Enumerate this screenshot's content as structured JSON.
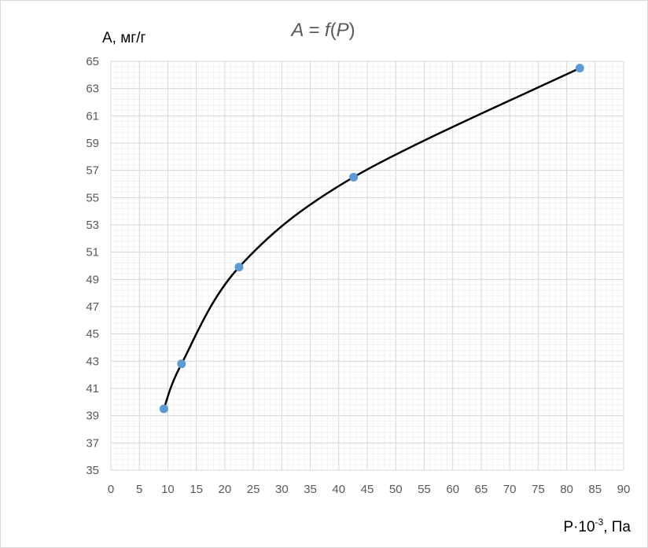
{
  "chart_data": {
    "type": "scatter",
    "title": {
      "left": "A = ",
      "func": "f",
      "open": "(",
      "var": "P",
      "close": ")"
    },
    "ylabel": "A, мг/г",
    "xlabel": {
      "base": "P·10",
      "exponent": "-3",
      "suffix": ", Па"
    },
    "xlim": [
      0,
      90
    ],
    "ylim": [
      35,
      65
    ],
    "x_ticks": [
      0,
      5,
      10,
      15,
      20,
      25,
      30,
      35,
      40,
      45,
      50,
      55,
      60,
      65,
      70,
      75,
      80,
      85,
      90
    ],
    "y_ticks": [
      35,
      37,
      39,
      41,
      43,
      45,
      47,
      49,
      51,
      53,
      55,
      57,
      59,
      61,
      63,
      65
    ],
    "grid": true,
    "minor_grid": true,
    "legend": "none",
    "smooth_line": true,
    "series": [
      {
        "x": [
          9.3,
          12.4,
          22.5,
          42.6,
          82.3
        ],
        "y": [
          39.5,
          42.8,
          49.9,
          56.5,
          64.5
        ]
      }
    ],
    "colors": {
      "line": "#000000",
      "marker": "#5b9bd5",
      "major_grid": "#d9d9d9",
      "minor_grid": "#f2f2f2",
      "tick_label": "#595959",
      "title": "#595959"
    }
  }
}
